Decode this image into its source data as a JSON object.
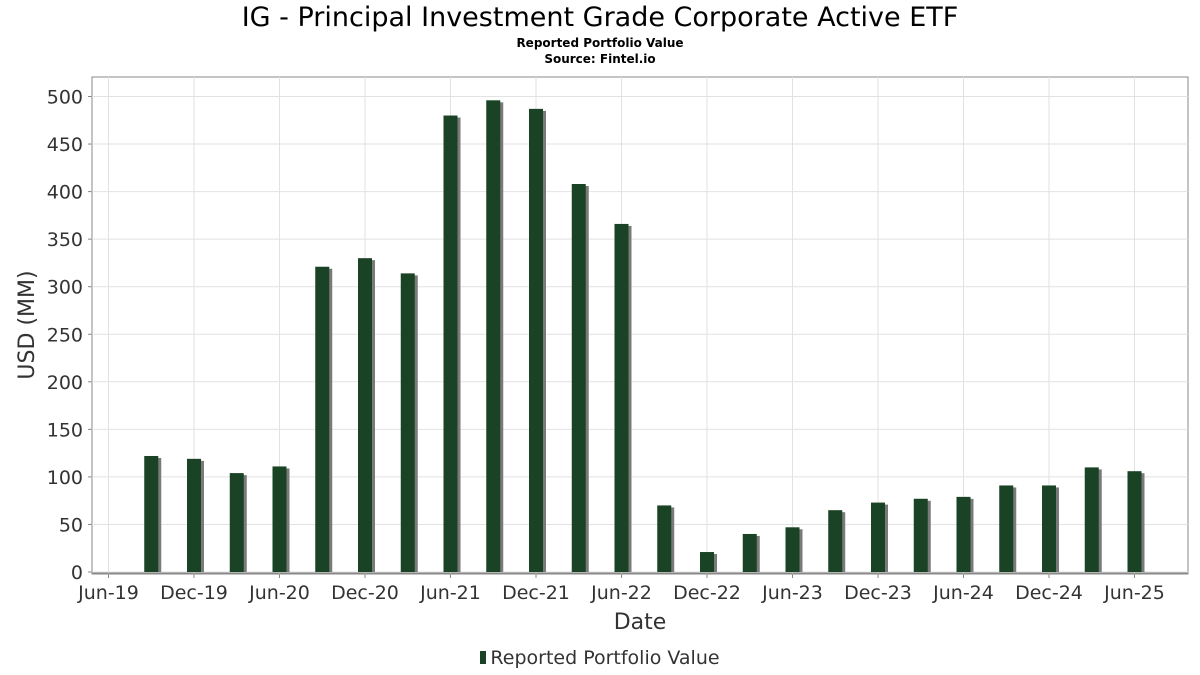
{
  "chart_data": {
    "type": "bar",
    "title": "IG - Principal Investment Grade Corporate Active ETF",
    "subtitle": "Reported Portfolio Value",
    "source": "Source: Fintel.io",
    "xlabel": "Date",
    "ylabel": "USD (MM)",
    "ylim": [
      0,
      520
    ],
    "yticks": [
      0,
      50,
      100,
      150,
      200,
      250,
      300,
      350,
      400,
      450,
      500
    ],
    "xticks": [
      "Jun-19",
      "Dec-19",
      "Jun-20",
      "Dec-20",
      "Jun-21",
      "Dec-21",
      "Jun-22",
      "Dec-22",
      "Jun-23",
      "Dec-23",
      "Jun-24",
      "Dec-24",
      "Jun-25"
    ],
    "bar_color": "#1a4224",
    "shadow_color": "#7a7a7a",
    "grid": true,
    "legend_position": "bottom",
    "series": [
      {
        "name": "Reported Portfolio Value",
        "points": [
          {
            "x": "2019-09",
            "y": 122
          },
          {
            "x": "2019-12",
            "y": 119
          },
          {
            "x": "2020-03",
            "y": 104
          },
          {
            "x": "2020-06",
            "y": 111
          },
          {
            "x": "2020-09",
            "y": 321
          },
          {
            "x": "2020-12",
            "y": 330
          },
          {
            "x": "2021-03",
            "y": 314
          },
          {
            "x": "2021-06",
            "y": 480
          },
          {
            "x": "2021-09",
            "y": 496
          },
          {
            "x": "2021-12",
            "y": 487
          },
          {
            "x": "2022-03",
            "y": 408
          },
          {
            "x": "2022-06",
            "y": 366
          },
          {
            "x": "2022-09",
            "y": 70
          },
          {
            "x": "2022-12",
            "y": 21
          },
          {
            "x": "2023-03",
            "y": 40
          },
          {
            "x": "2023-06",
            "y": 47
          },
          {
            "x": "2023-09",
            "y": 65
          },
          {
            "x": "2023-12",
            "y": 73
          },
          {
            "x": "2024-03",
            "y": 77
          },
          {
            "x": "2024-06",
            "y": 79
          },
          {
            "x": "2024-09",
            "y": 91
          },
          {
            "x": "2024-12",
            "y": 91
          },
          {
            "x": "2025-03",
            "y": 110
          },
          {
            "x": "2025-06",
            "y": 106
          }
        ]
      }
    ]
  }
}
